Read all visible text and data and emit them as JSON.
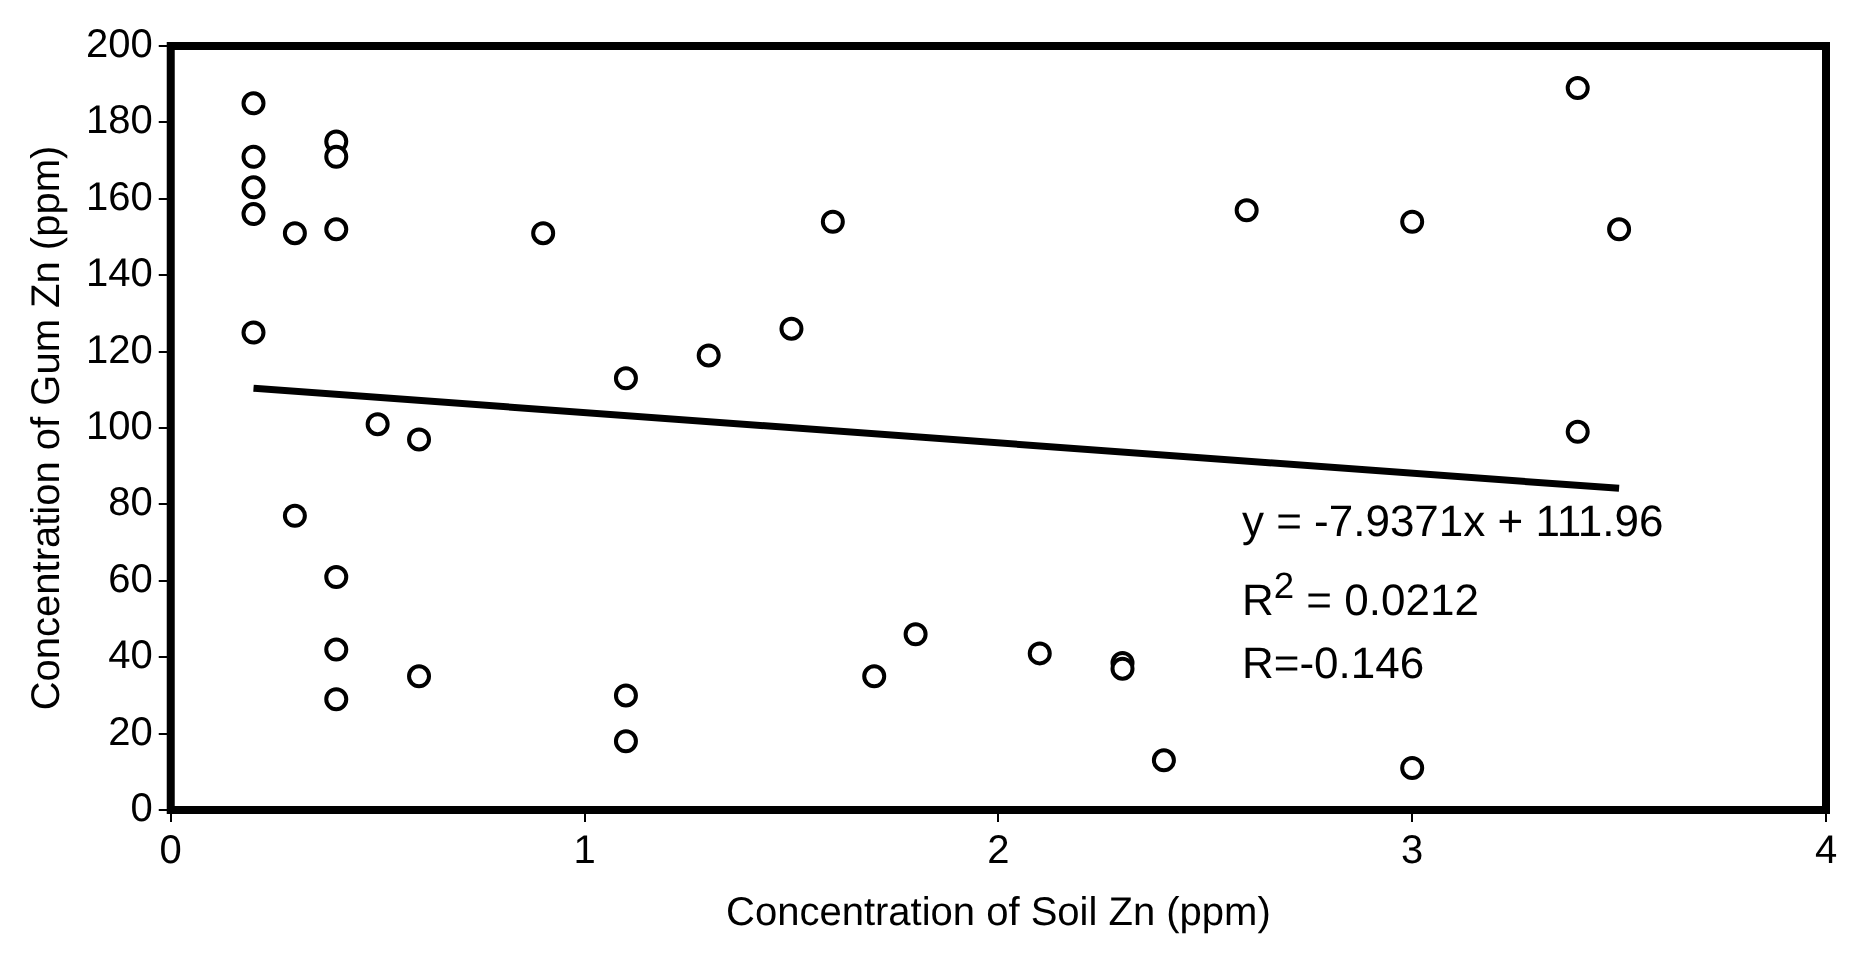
{
  "chart_data": {
    "type": "scatter",
    "xlabel": "Concentration of Soil Zn (ppm)",
    "ylabel": "Concentration of Gum Zn (ppm)",
    "xlim": [
      0,
      4
    ],
    "xticks": [
      0,
      1,
      2,
      3,
      4
    ],
    "ylim": [
      0,
      200
    ],
    "yticks": [
      0,
      20,
      40,
      60,
      80,
      100,
      120,
      140,
      160,
      180,
      200
    ],
    "series": [
      {
        "marker": "circle",
        "color": "#000000",
        "x": [
          0.2,
          0.2,
          0.2,
          0.2,
          0.3,
          0.4,
          0.4,
          0.4,
          0.9,
          0.2,
          1.6,
          1.5,
          1.3,
          1.1,
          0.5,
          0.6,
          0.3,
          0.4,
          0.4,
          0.4,
          0.6,
          1.1,
          1.1,
          1.7,
          1.8,
          2.1,
          2.3,
          2.3,
          2.4,
          3.0,
          2.6,
          3.0,
          3.5,
          3.4,
          3.4
        ],
        "values": [
          185,
          171,
          163,
          156,
          151,
          175,
          171,
          152,
          151,
          125,
          154,
          126,
          119,
          113,
          101,
          97,
          77,
          61,
          42,
          29,
          35,
          30,
          18,
          35,
          46,
          41,
          38.5,
          37,
          13,
          11,
          157,
          154,
          152,
          189,
          99
        ]
      },
      {
        "type": "line",
        "color": "#000000",
        "x": [
          0.2,
          3.5
        ],
        "values": [
          110.4,
          84.2
        ]
      }
    ],
    "annotations": [
      "y = -7.9371x + 111.96",
      "R$^{2}$ = 0.0212",
      "R=-0.146"
    ]
  }
}
